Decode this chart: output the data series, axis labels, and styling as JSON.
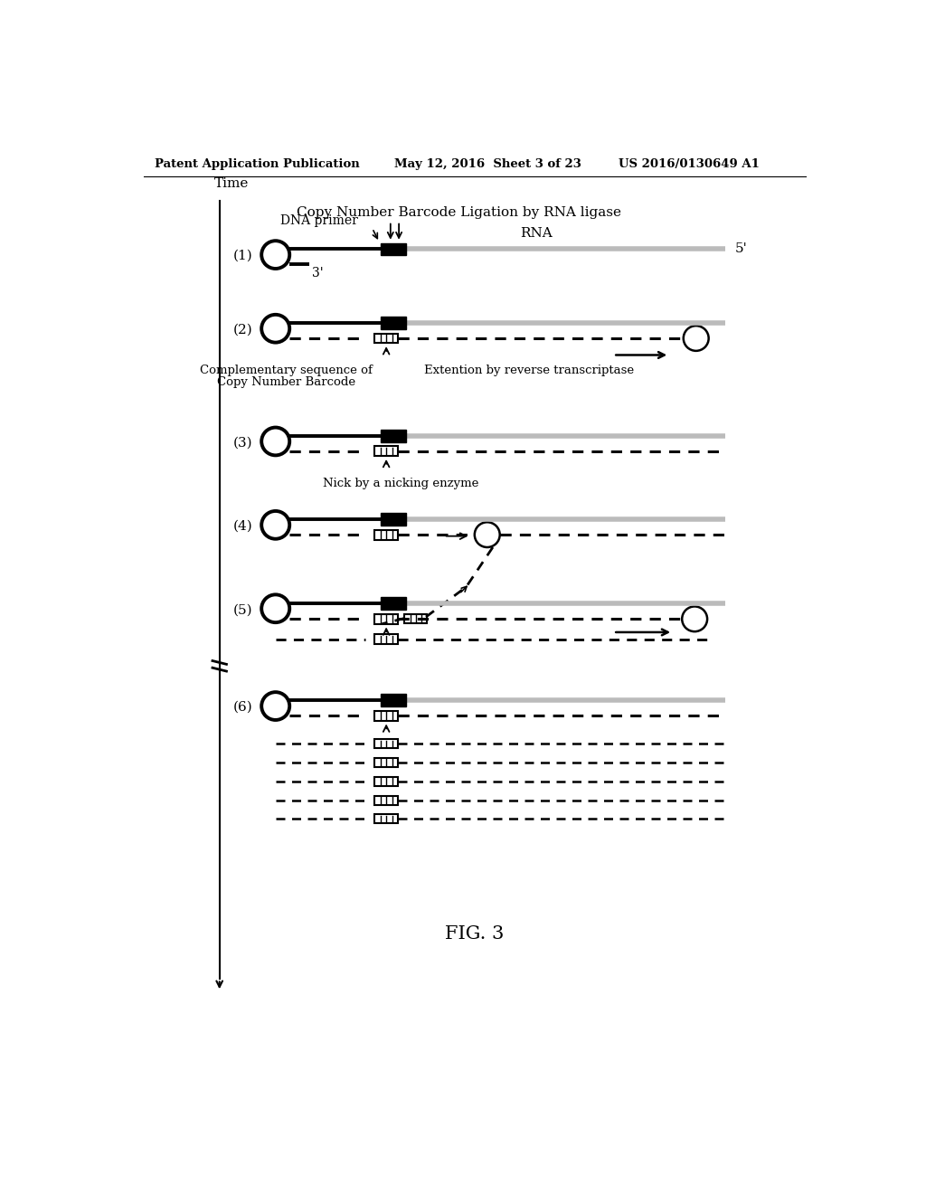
{
  "header_left": "Patent Application Publication",
  "header_mid": "May 12, 2016  Sheet 3 of 23",
  "header_right": "US 2016/0130649 A1",
  "fig_label": "FIG. 3",
  "title_text": "Copy Number Barcode Ligation by RNA ligase",
  "time_label": "Time",
  "annotations": {
    "dna_primer": "DNA primer",
    "rna": "RNA",
    "five_prime": "5'",
    "three_prime": "3'",
    "comp_seq_line1": "Complementary sequence of",
    "comp_seq_line2": "Copy Number Barcode",
    "extension": "Extention by reverse transcriptase",
    "nick": "Nick by a nicking enzyme"
  },
  "bg_color": "#ffffff",
  "gray_rna": "#bbbbbb"
}
